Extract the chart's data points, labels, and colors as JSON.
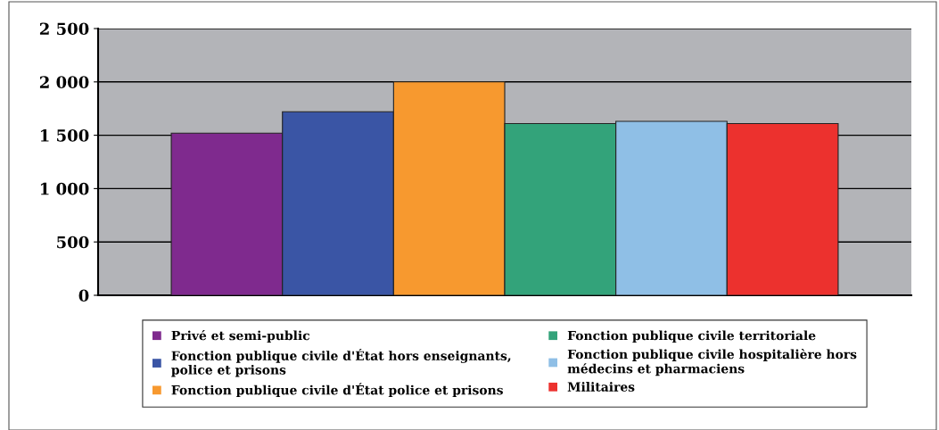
{
  "chart_data": {
    "type": "bar",
    "categories": [
      null
    ],
    "series": [
      {
        "name": "Privé et semi-public",
        "color": "#7f2a8e",
        "values": [
          1520
        ]
      },
      {
        "name": "Fonction publique civile d'État hors enseignants,\npolice et prisons",
        "color": "#3a55a5",
        "values": [
          1720
        ]
      },
      {
        "name": "Fonction publique civile d'État police et prisons",
        "color": "#f7992f",
        "values": [
          2000
        ]
      },
      {
        "name": "Fonction publique civile territoriale",
        "color": "#33a37a",
        "values": [
          1610
        ]
      },
      {
        "name": "Fonction publique civile hospitalière hors\nmédecins et pharmaciens",
        "color": "#8fbfe6",
        "values": [
          1630
        ]
      },
      {
        "name": "Militaires",
        "color": "#ec312e",
        "values": [
          1610
        ]
      }
    ],
    "ylim": [
      0,
      2500
    ],
    "yticks": [
      {
        "value": 0,
        "label": "0"
      },
      {
        "value": 500,
        "label": "500"
      },
      {
        "value": 1000,
        "label": "1 000"
      },
      {
        "value": 1500,
        "label": "1 500"
      },
      {
        "value": 2000,
        "label": "2 000"
      },
      {
        "value": 2500,
        "label": "2 500"
      }
    ],
    "grid": "y",
    "legend": "bottom"
  }
}
